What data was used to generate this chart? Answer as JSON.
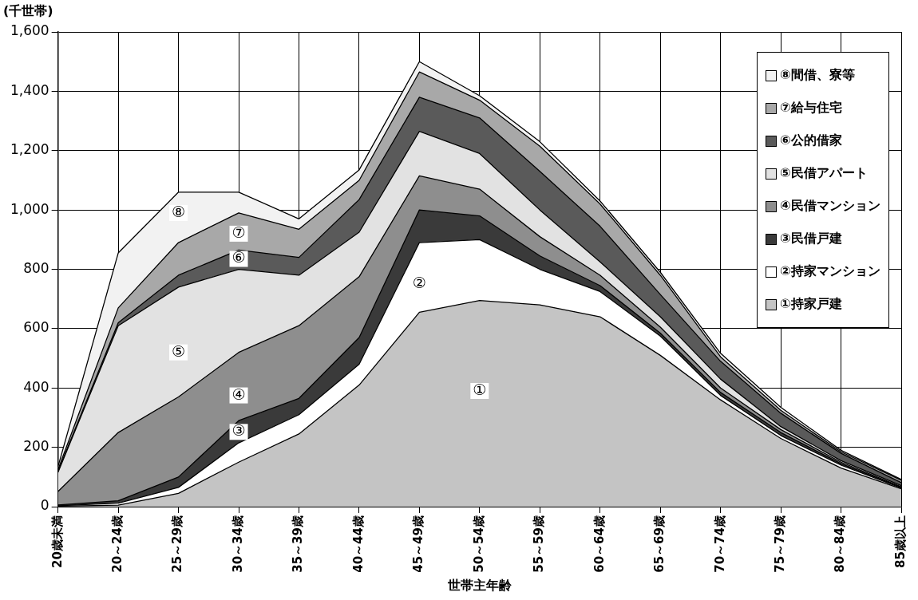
{
  "chart_data": {
    "type": "area",
    "stacked": true,
    "ylabel": "(千世帯)",
    "xlabel": "世帯主年齢",
    "categories": [
      "20歳未満",
      "20～24歳",
      "25～29歳",
      "30～34歳",
      "35～39歳",
      "40～44歳",
      "45～49歳",
      "50～54歳",
      "55～59歳",
      "60～64歳",
      "65～69歳",
      "70～74歳",
      "75～79歳",
      "80～84歳",
      "85歳以上"
    ],
    "series": [
      {
        "name": "①持家戸建",
        "color": "#c4c4c4",
        "values": [
          2,
          5,
          45,
          150,
          245,
          410,
          655,
          695,
          680,
          640,
          510,
          360,
          230,
          130,
          60
        ]
      },
      {
        "name": "②持家マンション",
        "color": "#ffffff",
        "values": [
          1,
          7,
          20,
          65,
          65,
          70,
          235,
          205,
          120,
          85,
          65,
          15,
          10,
          10,
          3
        ]
      },
      {
        "name": "③民借戸建",
        "color": "#3a3a3a",
        "values": [
          3,
          8,
          35,
          75,
          55,
          90,
          110,
          80,
          45,
          20,
          10,
          10,
          10,
          5,
          2
        ]
      },
      {
        "name": "④民借マンション",
        "color": "#8e8e8e",
        "values": [
          45,
          230,
          270,
          230,
          245,
          205,
          115,
          90,
          65,
          35,
          20,
          15,
          10,
          5,
          2
        ]
      },
      {
        "name": "⑤民借アパート",
        "color": "#e2e2e2",
        "values": [
          65,
          360,
          370,
          280,
          170,
          150,
          150,
          120,
          90,
          45,
          35,
          30,
          10,
          5,
          4
        ]
      },
      {
        "name": "⑥公的借家",
        "color": "#5a5a5a",
        "values": [
          3,
          10,
          40,
          65,
          60,
          110,
          115,
          120,
          130,
          120,
          75,
          60,
          45,
          25,
          10
        ]
      },
      {
        "name": "⑦給与住宅",
        "color": "#a8a8a8",
        "values": [
          6,
          50,
          110,
          125,
          95,
          65,
          85,
          60,
          85,
          75,
          65,
          15,
          10,
          5,
          8
        ]
      },
      {
        "name": "⑧間借、寮等",
        "color": "#f2f2f2",
        "values": [
          10,
          185,
          170,
          70,
          35,
          35,
          35,
          15,
          15,
          10,
          10,
          12,
          10,
          5,
          3
        ]
      }
    ],
    "ylim": [
      0,
      1600
    ],
    "yticks": [
      0,
      200,
      400,
      600,
      800,
      {
        "value": 1000,
        "label": "1,000"
      },
      {
        "value": 1200,
        "label": "1,200"
      },
      {
        "value": 1400,
        "label": "1,400"
      },
      {
        "value": 1600,
        "label": "1,600"
      }
    ],
    "grid": true,
    "legend": "top right",
    "annotations": [
      {
        "text": "⑧",
        "x": "25～29歳",
        "y": 990
      },
      {
        "text": "⑦",
        "x": "30～34歳",
        "y": 920
      },
      {
        "text": "⑥",
        "x": "30～34歳",
        "y": 835
      },
      {
        "text": "⑤",
        "x": "25～29歳",
        "y": 520
      },
      {
        "text": "④",
        "x": "30～34歳",
        "y": 375
      },
      {
        "text": "③",
        "x": "30～34歳",
        "y": 252
      },
      {
        "text": "②",
        "x": "45～49歳",
        "y": 750
      },
      {
        "text": "①",
        "x": "50～54歳",
        "y": 390
      }
    ]
  }
}
